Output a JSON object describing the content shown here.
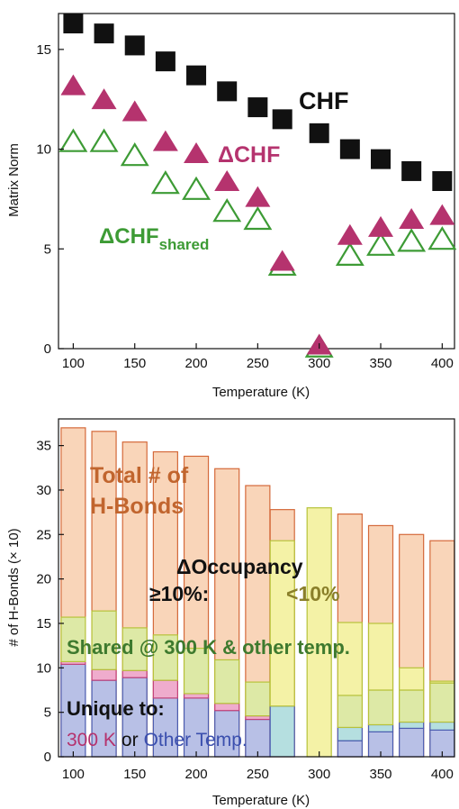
{
  "chart_data": [
    {
      "type": "scatter",
      "title": "",
      "xlabel": "Temperature (K)",
      "ylabel": "Matrix Norm",
      "xlim": [
        88,
        410
      ],
      "ylim": [
        0,
        16.8
      ],
      "xticks": [
        "100",
        "150",
        "200",
        "250",
        "300",
        "350",
        "400"
      ],
      "yticks": [
        "0",
        "5",
        "10",
        "15"
      ],
      "grid": false,
      "annotations": {
        "chf": "CHF",
        "dchf": "ΔCHF",
        "dchf_shared_main": "ΔCHF",
        "dchf_shared_sub": "shared"
      },
      "colors": {
        "chf": "#111111",
        "dchf": "#b5336e",
        "dchf_shared": "#3d9b35"
      },
      "series": [
        {
          "key": "chf",
          "marker": "square-filled",
          "x": [
            100,
            125,
            150,
            175,
            200,
            225,
            250,
            270,
            300,
            325,
            350,
            375,
            400
          ],
          "y": [
            16.3,
            15.8,
            15.2,
            14.4,
            13.7,
            12.9,
            12.1,
            11.5,
            10.8,
            10.0,
            9.5,
            8.9,
            8.4
          ]
        },
        {
          "key": "dchf",
          "marker": "triangle-filled",
          "x": [
            100,
            125,
            150,
            175,
            200,
            225,
            250,
            270,
            300,
            325,
            350,
            375,
            400
          ],
          "y": [
            13.1,
            12.4,
            11.8,
            10.3,
            9.7,
            8.3,
            7.5,
            4.3,
            0.1,
            5.6,
            6.0,
            6.4,
            6.6
          ]
        },
        {
          "key": "dchf_shared",
          "marker": "triangle-open",
          "x": [
            100,
            125,
            150,
            175,
            200,
            225,
            250,
            270,
            300,
            325,
            350,
            375,
            400
          ],
          "y": [
            10.3,
            10.3,
            9.6,
            8.2,
            7.9,
            6.8,
            6.4,
            4.1,
            0.0,
            4.6,
            5.1,
            5.3,
            5.4
          ]
        }
      ]
    },
    {
      "type": "bar",
      "title": "",
      "xlabel": "Temperature (K)",
      "ylabel": "# of H-Bonds (× 10)",
      "xlim": [
        88,
        410
      ],
      "ylim": [
        0,
        38
      ],
      "xticks": [
        "100",
        "150",
        "200",
        "250",
        "300",
        "350",
        "400"
      ],
      "yticks": [
        "0",
        "5",
        "10",
        "15",
        "20",
        "25",
        "30",
        "35"
      ],
      "grid": false,
      "annotations": {
        "total_line1": "Total # of",
        "total_line2": "H-Bonds",
        "occupancy": "ΔOccupancy",
        "ge10": "≥10%:",
        "lt10": "<10%",
        "shared": "Shared @ 300 K & other temp.",
        "unique": "Unique to:",
        "k300": "300 K",
        "or": "or",
        "other": "Other Temp."
      },
      "colors": {
        "total_fill": "#f9d5b9",
        "total_edge": "#d4693a",
        "shared_ge10_fill": "#dde9a6",
        "shared_lt10_fill": "#f4f2a6",
        "shared_edge": "#b7c23a",
        "unique300_fill": "#efaccd",
        "unique300_edge": "#c3437a",
        "other_ge10_fill": "#b8c0e6",
        "other_lt10_fill": "#b5dfe0",
        "other_edge": "#4b5cb0",
        "text_total": "#c1652e",
        "text_shared": "#3e7a2e",
        "text_lt10": "#8a7f2a",
        "text_k300": "#b5336e",
        "text_other": "#3b4fae"
      },
      "x": [
        100,
        125,
        150,
        175,
        200,
        225,
        250,
        270,
        300,
        325,
        350,
        375,
        400
      ],
      "series": [
        {
          "name": "Total",
          "values": [
            37.0,
            36.6,
            35.4,
            34.3,
            33.8,
            32.4,
            30.5,
            27.8,
            0,
            27.3,
            26.0,
            25.0,
            24.3
          ]
        },
        {
          "name": "Shared (≥10%)",
          "values": [
            5.0,
            6.6,
            4.8,
            5.1,
            5.1,
            4.9,
            3.8,
            0,
            0,
            3.6,
            3.9,
            3.6,
            4.4
          ]
        },
        {
          "name": "Shared (<10%)",
          "values": [
            0,
            0,
            0,
            0,
            0,
            0,
            0,
            18.6,
            28.0,
            8.2,
            7.5,
            2.5,
            0.2
          ]
        },
        {
          "name": "Unique to 300 K",
          "values": [
            0.3,
            1.2,
            0.8,
            2.0,
            0.5,
            0.8,
            0.4,
            0,
            0,
            0,
            0,
            0,
            0
          ]
        },
        {
          "name": "Unique to other temp. (≥10%)",
          "values": [
            10.4,
            8.6,
            8.9,
            6.6,
            6.6,
            5.2,
            4.2,
            0,
            0,
            1.8,
            2.8,
            3.2,
            3.0
          ]
        },
        {
          "name": "Unique to other temp. (<10%)",
          "values": [
            0,
            0,
            0,
            0,
            0,
            0,
            0,
            5.7,
            0,
            1.5,
            0.8,
            0.7,
            0.9
          ]
        }
      ]
    }
  ]
}
